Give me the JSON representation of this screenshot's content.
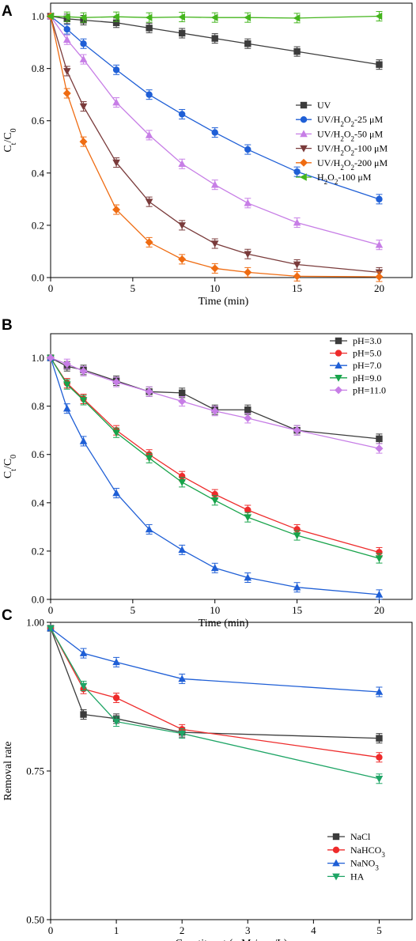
{
  "chart_data": [
    {
      "panel": "A",
      "type": "line",
      "xlabel": "Time (min)",
      "ylabel": "C_t/C_0",
      "xlim": [
        0,
        22
      ],
      "ylim": [
        0,
        1.05
      ],
      "xticks": [
        0,
        5,
        10,
        15,
        20
      ],
      "yticks": [
        0.0,
        0.2,
        0.4,
        0.6,
        0.8,
        1.0
      ],
      "ytick_labels": [
        "0.0",
        "0.2",
        "0.4",
        "0.6",
        "0.8",
        "1.0"
      ],
      "legend_position": "right",
      "x": [
        0,
        1,
        2,
        4,
        6,
        8,
        10,
        12,
        15,
        20
      ],
      "series": [
        {
          "name": "UV",
          "color": "#3c3c3c",
          "marker": "square",
          "values": [
            1.0,
            0.99,
            0.985,
            0.975,
            0.955,
            0.935,
            0.915,
            0.895,
            0.865,
            0.815
          ]
        },
        {
          "name": "UV/H2O2-25 μM",
          "color": "#1f5fd6",
          "marker": "circle",
          "values": [
            1.0,
            0.95,
            0.895,
            0.795,
            0.7,
            0.625,
            0.555,
            0.49,
            0.405,
            0.3
          ]
        },
        {
          "name": "UV/H2O2-50 μM",
          "color": "#c77ee6",
          "marker": "triangle-up",
          "values": [
            1.0,
            0.91,
            0.835,
            0.67,
            0.545,
            0.435,
            0.355,
            0.285,
            0.21,
            0.125
          ]
        },
        {
          "name": "UV/H2O2-100 μM",
          "color": "#7a3b3b",
          "marker": "triangle-down",
          "values": [
            1.0,
            0.79,
            0.655,
            0.44,
            0.29,
            0.2,
            0.13,
            0.09,
            0.05,
            0.02
          ]
        },
        {
          "name": "UV/H2O2-200 μM",
          "color": "#ef6c12",
          "marker": "diamond",
          "values": [
            1.0,
            0.705,
            0.52,
            0.26,
            0.135,
            0.07,
            0.035,
            0.02,
            0.005,
            0.003
          ]
        },
        {
          "name": "H2O2-100 μM",
          "color": "#44b51d",
          "marker": "triangle-left",
          "values": [
            1.0,
            0.998,
            0.995,
            0.998,
            0.995,
            0.997,
            0.995,
            0.995,
            0.993,
            1.0
          ]
        }
      ]
    },
    {
      "panel": "B",
      "type": "line",
      "xlabel": "Time (min)",
      "ylabel": "C_t/C_0",
      "xlim": [
        0,
        22
      ],
      "ylim": [
        0,
        1.1
      ],
      "xticks": [
        0,
        5,
        10,
        15,
        20
      ],
      "yticks": [
        0.0,
        0.2,
        0.4,
        0.6,
        0.8,
        1.0
      ],
      "ytick_labels": [
        "0.0",
        "0.2",
        "0.4",
        "0.6",
        "0.8",
        "1.0"
      ],
      "legend_position": "top-right",
      "x": [
        0,
        1,
        2,
        4,
        6,
        8,
        10,
        12,
        15,
        20
      ],
      "series": [
        {
          "name": "pH=3.0",
          "color": "#3c3c3c",
          "marker": "square",
          "values": [
            1.0,
            0.965,
            0.95,
            0.905,
            0.86,
            0.855,
            0.785,
            0.785,
            0.7,
            0.665
          ]
        },
        {
          "name": "pH=5.0",
          "color": "#ee2b2b",
          "marker": "circle",
          "values": [
            1.0,
            0.895,
            0.83,
            0.7,
            0.6,
            0.51,
            0.435,
            0.37,
            0.29,
            0.195
          ]
        },
        {
          "name": "pH=7.0",
          "color": "#1f5fd6",
          "marker": "triangle-up",
          "values": [
            1.0,
            0.79,
            0.655,
            0.44,
            0.29,
            0.205,
            0.13,
            0.09,
            0.05,
            0.02
          ]
        },
        {
          "name": "pH=9.0",
          "color": "#17a34a",
          "marker": "triangle-down",
          "values": [
            1.0,
            0.89,
            0.825,
            0.69,
            0.585,
            0.485,
            0.41,
            0.34,
            0.265,
            0.17
          ]
        },
        {
          "name": "pH=11.0",
          "color": "#c77ee6",
          "marker": "diamond",
          "values": [
            1.0,
            0.975,
            0.945,
            0.9,
            0.86,
            0.82,
            0.78,
            0.75,
            0.7,
            0.625
          ]
        }
      ]
    },
    {
      "panel": "C",
      "type": "line",
      "xlabel": "Constituent (mM / mg/L)",
      "ylabel": "Removal rate",
      "xlim": [
        0,
        5.5
      ],
      "ylim": [
        0.5,
        1.0
      ],
      "xticks": [
        0,
        1,
        2,
        3,
        4,
        5
      ],
      "yticks": [
        0.5,
        0.75,
        1.0
      ],
      "ytick_labels": [
        "0.50",
        "0.75",
        "1.00"
      ],
      "legend_position": "bottom-right",
      "x": [
        0,
        0.5,
        1,
        2,
        5
      ],
      "series": [
        {
          "name": "NaCl",
          "color": "#3c3c3c",
          "marker": "square",
          "values": [
            0.99,
            0.845,
            0.838,
            0.815,
            0.805
          ]
        },
        {
          "name": "NaHCO3",
          "color": "#ee2b2b",
          "marker": "circle",
          "values": [
            0.99,
            0.888,
            0.873,
            0.82,
            0.773
          ]
        },
        {
          "name": "NaNO3",
          "color": "#1f5fd6",
          "marker": "triangle-up",
          "values": [
            0.99,
            0.948,
            0.933,
            0.905,
            0.883
          ]
        },
        {
          "name": "HA",
          "color": "#1fa566",
          "marker": "triangle-down",
          "values": [
            0.99,
            0.893,
            0.833,
            0.813,
            0.737
          ]
        }
      ]
    }
  ],
  "legends": {
    "A": [
      {
        "base": "UV",
        "sub": "",
        "rest": ""
      },
      {
        "base": "UV/H",
        "sub": "2",
        "rest": "O",
        "sub2": "2",
        "rest2": "-25 μM"
      },
      {
        "base": "UV/H",
        "sub": "2",
        "rest": "O",
        "sub2": "2",
        "rest2": "-50 μM"
      },
      {
        "base": "UV/H",
        "sub": "2",
        "rest": "O",
        "sub2": "2",
        "rest2": "-100 μM"
      },
      {
        "base": "UV/H",
        "sub": "2",
        "rest": "O",
        "sub2": "2",
        "rest2": "-200 μM"
      },
      {
        "base": "H",
        "sub": "2",
        "rest": "O",
        "sub2": "2",
        "rest2": "-100 μM"
      }
    ],
    "B": [
      {
        "base": "pH=3.0"
      },
      {
        "base": "pH=5.0"
      },
      {
        "base": "pH=7.0"
      },
      {
        "base": "pH=9.0"
      },
      {
        "base": "pH=11.0"
      }
    ],
    "C": [
      {
        "base": "NaCl"
      },
      {
        "base": "NaHCO",
        "sub": "3",
        "rest": ""
      },
      {
        "base": "NaNO",
        "sub": "3",
        "rest": ""
      },
      {
        "base": "HA"
      }
    ]
  },
  "panel_labels": [
    "A",
    "B",
    "C"
  ],
  "ylabel_parts": {
    "c": "C",
    "t": "t",
    "slash": "/C",
    "zero": "0"
  }
}
